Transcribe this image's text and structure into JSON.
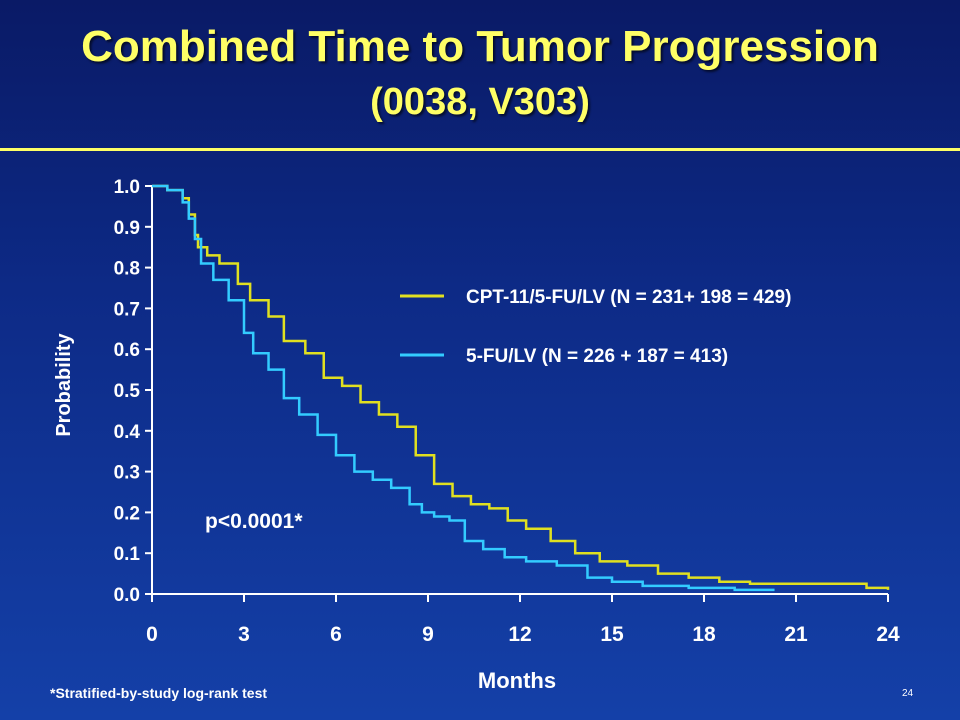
{
  "slide": {
    "title": "Combined Time to Tumor Progression",
    "subtitle": "(0038, V303)",
    "footnote": "*Stratified-by-study log-rank test",
    "page_number": "24"
  },
  "colors": {
    "background": "#0d2a86",
    "title": "#ffff66",
    "series_cpt": "#e0e020",
    "series_fulv": "#33ccff",
    "axis": "#ffffff"
  },
  "chart_data": {
    "type": "line",
    "step": true,
    "xlabel": "Months",
    "ylabel": "Probability",
    "xlim": [
      0,
      24
    ],
    "ylim": [
      0,
      1
    ],
    "xticks": [
      0,
      3,
      6,
      9,
      12,
      15,
      18,
      21,
      24
    ],
    "yticks": [
      0.0,
      0.1,
      0.2,
      0.3,
      0.4,
      0.5,
      0.6,
      0.7,
      0.8,
      0.9,
      1.0
    ],
    "xtick_labels": [
      "0",
      "3",
      "6",
      "9",
      "12",
      "15",
      "18",
      "21",
      "24"
    ],
    "ytick_labels": [
      "0.0",
      "0.1",
      "0.2",
      "0.3",
      "0.4",
      "0.5",
      "0.6",
      "0.7",
      "0.8",
      "0.9",
      "1.0"
    ],
    "grid": false,
    "legend_position": "right",
    "annotation": "p<0.0001*",
    "series": [
      {
        "name": "CPT-11/5-FU/LV (N = 231+ 198 = 429)",
        "x": [
          0,
          0.5,
          1.0,
          1.2,
          1.4,
          1.5,
          1.8,
          2.2,
          2.8,
          3.2,
          3.8,
          4.3,
          5.0,
          5.6,
          6.2,
          6.8,
          7.4,
          8.0,
          8.6,
          9.2,
          9.8,
          10.4,
          11.0,
          11.6,
          12.2,
          13.0,
          13.8,
          14.6,
          15.5,
          16.5,
          17.5,
          18.5,
          19.5,
          21.0,
          22.5,
          23.3,
          24.0
        ],
        "y": [
          1.0,
          0.99,
          0.97,
          0.93,
          0.88,
          0.85,
          0.83,
          0.81,
          0.76,
          0.72,
          0.68,
          0.62,
          0.59,
          0.53,
          0.51,
          0.47,
          0.44,
          0.41,
          0.34,
          0.27,
          0.24,
          0.22,
          0.21,
          0.18,
          0.16,
          0.13,
          0.1,
          0.08,
          0.07,
          0.05,
          0.04,
          0.03,
          0.025,
          0.025,
          0.025,
          0.015,
          0.01
        ]
      },
      {
        "name": "5-FU/LV (N = 226 + 187 = 413)",
        "x": [
          0,
          0.5,
          1.0,
          1.2,
          1.4,
          1.6,
          2.0,
          2.5,
          3.0,
          3.3,
          3.8,
          4.3,
          4.8,
          5.4,
          6.0,
          6.6,
          7.2,
          7.8,
          8.4,
          8.8,
          9.2,
          9.7,
          10.2,
          10.8,
          11.5,
          12.2,
          13.2,
          14.2,
          15.0,
          16.0,
          17.5,
          19.0,
          20.3
        ],
        "y": [
          1.0,
          0.99,
          0.96,
          0.92,
          0.87,
          0.81,
          0.77,
          0.72,
          0.64,
          0.59,
          0.55,
          0.48,
          0.44,
          0.39,
          0.34,
          0.3,
          0.28,
          0.26,
          0.22,
          0.2,
          0.19,
          0.18,
          0.13,
          0.11,
          0.09,
          0.08,
          0.07,
          0.04,
          0.03,
          0.02,
          0.015,
          0.01,
          0.01
        ]
      }
    ]
  }
}
